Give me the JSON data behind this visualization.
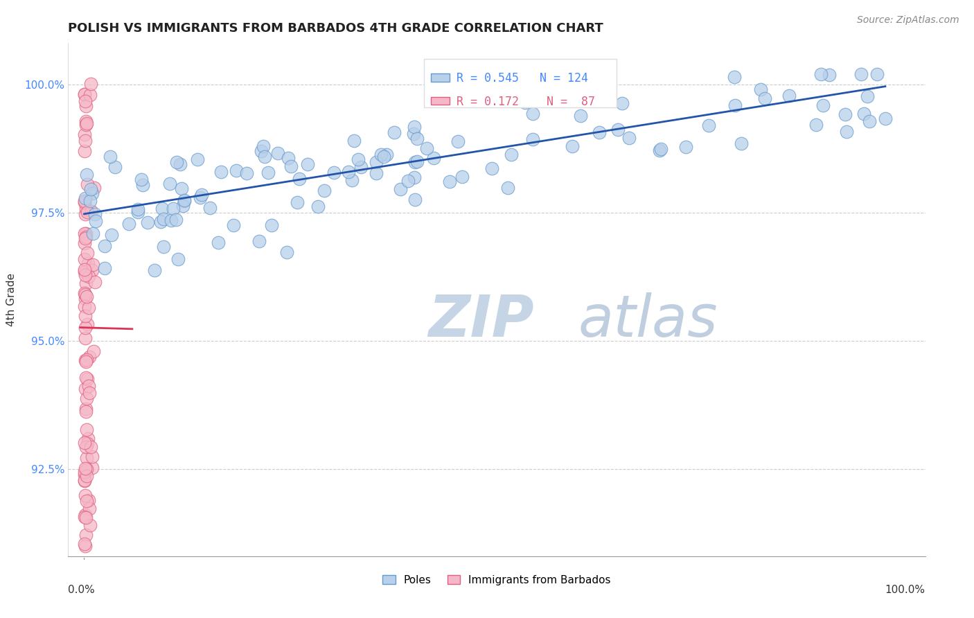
{
  "title": "POLISH VS IMMIGRANTS FROM BARBADOS 4TH GRADE CORRELATION CHART",
  "source": "Source: ZipAtlas.com",
  "ylabel": "4th Grade",
  "ylim": [
    0.908,
    1.008
  ],
  "xlim": [
    -0.02,
    1.05
  ],
  "blue_R": 0.545,
  "blue_N": 124,
  "pink_R": 0.172,
  "pink_N": 87,
  "blue_color": "#b8d0ea",
  "blue_edge": "#6699cc",
  "pink_color": "#f5b8c8",
  "pink_edge": "#e06080",
  "blue_line_color": "#2255aa",
  "pink_line_color": "#dd3355",
  "watermark_zip": "ZIP",
  "watermark_atlas": "atlas",
  "watermark_color_zip": "#c5d5e5",
  "watermark_color_atlas": "#c0cfe0",
  "legend_blue_label": "Poles",
  "legend_pink_label": "Immigrants from Barbados",
  "yticks": [
    0.925,
    0.95,
    0.975,
    1.0
  ],
  "ytick_labels": [
    "92.5%",
    "95.0%",
    "97.5%",
    "100.0%"
  ],
  "grid_color": "#cccccc",
  "title_color": "#222222",
  "source_color": "#888888",
  "ytick_color": "#4488ff",
  "legend_box_color": "#dddddd"
}
